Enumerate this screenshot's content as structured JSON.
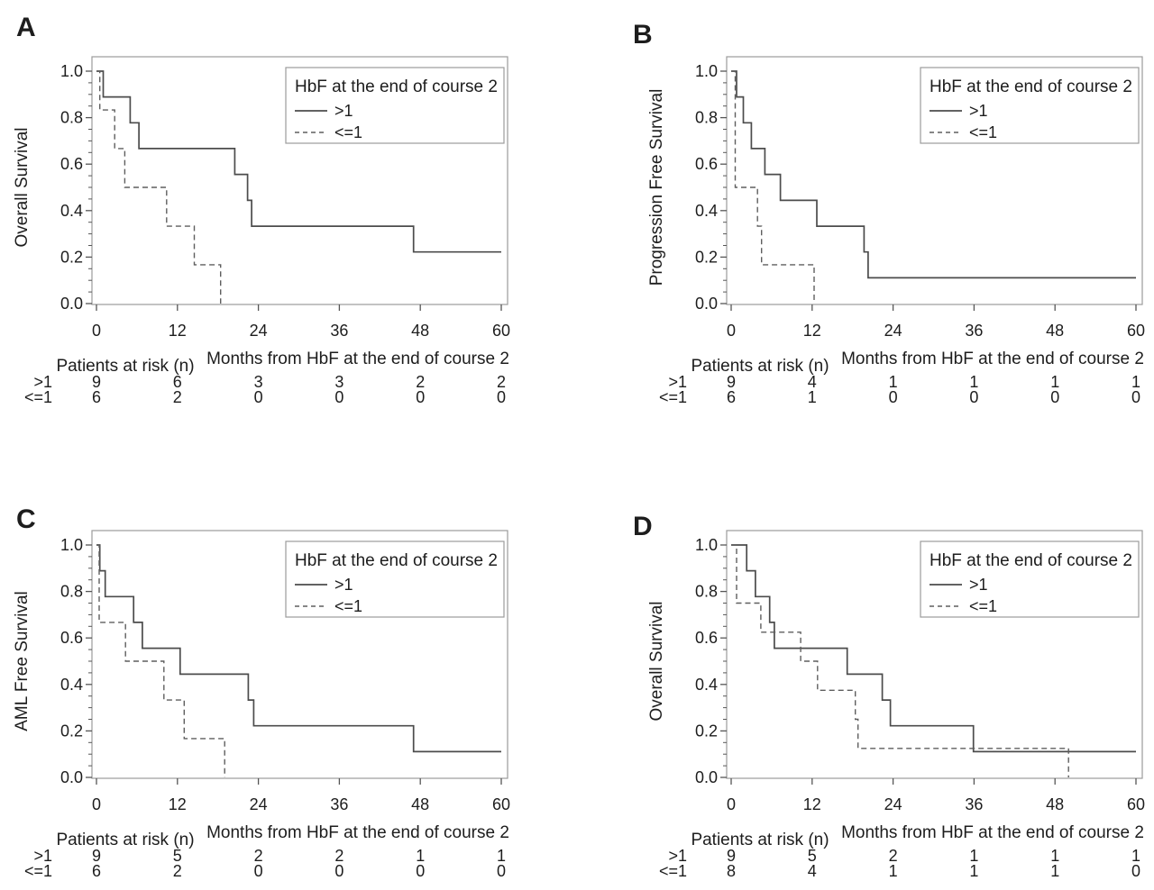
{
  "figure": {
    "background": "#ffffff",
    "panel_letter_color": "#15688e",
    "curve_color_solid": "#4c4c4c",
    "curve_color_dashed": "#5e5e5e",
    "axis_border_color": "#9b9b9b",
    "tick_color": "#565656"
  },
  "chart_data": [
    {
      "type": "line",
      "variant": "kaplan_meier_step",
      "panel_label": "A",
      "ylabel": "Overall Survival",
      "xlabel": "Months from HbF at the end of course 2",
      "xlim": [
        0,
        60
      ],
      "ylim": [
        0.0,
        1.0
      ],
      "grid": false,
      "xticks": [
        0,
        12,
        24,
        36,
        48,
        60
      ],
      "xtick_labels": [
        "0",
        "12",
        "24",
        "36",
        "48",
        "60"
      ],
      "ytick_labels": [
        "0.0",
        "0.2",
        "0.4",
        "0.6",
        "0.8",
        "1.0"
      ],
      "legend": {
        "title": "HbF at the end of course 2",
        "position": "top-right",
        "entries": [
          {
            "label": ">1",
            "line_style": "solid"
          },
          {
            "label": "<=1",
            "line_style": "dashed"
          }
        ]
      },
      "series": [
        {
          "name": ">1",
          "line_style": "solid",
          "points": [
            [
              0,
              1
            ],
            [
              1,
              1
            ],
            [
              1,
              0.889
            ],
            [
              5,
              0.889
            ],
            [
              5,
              0.778
            ],
            [
              6.3,
              0.778
            ],
            [
              6.3,
              0.667
            ],
            [
              20.5,
              0.667
            ],
            [
              20.5,
              0.556
            ],
            [
              22.4,
              0.556
            ],
            [
              22.4,
              0.444
            ],
            [
              23,
              0.444
            ],
            [
              23,
              0.333
            ],
            [
              47,
              0.333
            ],
            [
              47,
              0.222
            ],
            [
              60,
              0.222
            ]
          ]
        },
        {
          "name": "<=1",
          "line_style": "dashed",
          "points": [
            [
              0,
              1
            ],
            [
              0.5,
              1
            ],
            [
              0.5,
              0.833
            ],
            [
              2.7,
              0.833
            ],
            [
              2.7,
              0.667
            ],
            [
              4.2,
              0.667
            ],
            [
              4.2,
              0.5
            ],
            [
              10.4,
              0.5
            ],
            [
              10.4,
              0.333
            ],
            [
              14.5,
              0.333
            ],
            [
              14.5,
              0.167
            ],
            [
              18.4,
              0.167
            ],
            [
              18.4,
              0
            ]
          ]
        }
      ],
      "risk_table": {
        "title": "Patients at risk (n)",
        "times": [
          0,
          12,
          24,
          36,
          48,
          60
        ],
        "rows": [
          {
            "label": ">1",
            "counts": [
              "9",
              "6",
              "3",
              "3",
              "2",
              "2"
            ]
          },
          {
            "label": "<=1",
            "counts": [
              "6",
              "2",
              "0",
              "0",
              "0",
              "0"
            ]
          }
        ]
      }
    },
    {
      "type": "line",
      "variant": "kaplan_meier_step",
      "panel_label": "B",
      "ylabel": "Progression Free Survival",
      "xlabel": "Months from HbF at the end of course 2",
      "xlim": [
        0,
        60
      ],
      "ylim": [
        0.0,
        1.0
      ],
      "grid": false,
      "xticks": [
        0,
        12,
        24,
        36,
        48,
        60
      ],
      "xtick_labels": [
        "0",
        "12",
        "24",
        "36",
        "48",
        "60"
      ],
      "ytick_labels": [
        "0.0",
        "0.2",
        "0.4",
        "0.6",
        "0.8",
        "1.0"
      ],
      "legend": {
        "title": "HbF at the end of course 2",
        "position": "top-right",
        "entries": [
          {
            "label": ">1",
            "line_style": "solid"
          },
          {
            "label": "<=1",
            "line_style": "dashed"
          }
        ]
      },
      "series": [
        {
          "name": ">1",
          "line_style": "solid",
          "points": [
            [
              0,
              1
            ],
            [
              0.8,
              1
            ],
            [
              0.8,
              0.889
            ],
            [
              1.8,
              0.889
            ],
            [
              1.8,
              0.778
            ],
            [
              3,
              0.778
            ],
            [
              3,
              0.667
            ],
            [
              5,
              0.667
            ],
            [
              5,
              0.556
            ],
            [
              7.3,
              0.556
            ],
            [
              7.3,
              0.444
            ],
            [
              12.7,
              0.444
            ],
            [
              12.7,
              0.333
            ],
            [
              19.7,
              0.333
            ],
            [
              19.7,
              0.222
            ],
            [
              20.3,
              0.222
            ],
            [
              20.3,
              0.111
            ],
            [
              60,
              0.111
            ]
          ]
        },
        {
          "name": "<=1",
          "line_style": "dashed",
          "points": [
            [
              0,
              1
            ],
            [
              0.6,
              1
            ],
            [
              0.6,
              0.5
            ],
            [
              3.9,
              0.5
            ],
            [
              3.9,
              0.333
            ],
            [
              4.5,
              0.333
            ],
            [
              4.5,
              0.167
            ],
            [
              12.3,
              0.167
            ],
            [
              12.3,
              0
            ]
          ]
        }
      ],
      "risk_table": {
        "title": "Patients at risk (n)",
        "times": [
          0,
          12,
          24,
          36,
          48,
          60
        ],
        "rows": [
          {
            "label": ">1",
            "counts": [
              "9",
              "4",
              "1",
              "1",
              "1",
              "1"
            ]
          },
          {
            "label": "<=1",
            "counts": [
              "6",
              "1",
              "0",
              "0",
              "0",
              "0"
            ]
          }
        ]
      }
    },
    {
      "type": "line",
      "variant": "kaplan_meier_step",
      "panel_label": "C",
      "ylabel": "AML Free Survival",
      "xlabel": "Months from HbF at the end of course 2",
      "xlim": [
        0,
        60
      ],
      "ylim": [
        0.0,
        1.0
      ],
      "grid": false,
      "xticks": [
        0,
        12,
        24,
        36,
        48,
        60
      ],
      "xtick_labels": [
        "0",
        "12",
        "24",
        "36",
        "48",
        "60"
      ],
      "ytick_labels": [
        "0.0",
        "0.2",
        "0.4",
        "0.6",
        "0.8",
        "1.0"
      ],
      "legend": {
        "title": "HbF at the end of course 2",
        "position": "top-right",
        "entries": [
          {
            "label": ">1",
            "line_style": "solid"
          },
          {
            "label": "<=1",
            "line_style": "dashed"
          }
        ]
      },
      "series": [
        {
          "name": ">1",
          "line_style": "solid",
          "points": [
            [
              0,
              1
            ],
            [
              0.5,
              1
            ],
            [
              0.5,
              0.889
            ],
            [
              1.3,
              0.889
            ],
            [
              1.3,
              0.778
            ],
            [
              5.5,
              0.778
            ],
            [
              5.5,
              0.667
            ],
            [
              6.8,
              0.667
            ],
            [
              6.8,
              0.556
            ],
            [
              12.4,
              0.556
            ],
            [
              12.4,
              0.444
            ],
            [
              22.5,
              0.444
            ],
            [
              22.5,
              0.333
            ],
            [
              23.3,
              0.333
            ],
            [
              23.3,
              0.222
            ],
            [
              47,
              0.222
            ],
            [
              47,
              0.111
            ],
            [
              60,
              0.111
            ]
          ]
        },
        {
          "name": "<=1",
          "line_style": "dashed",
          "points": [
            [
              0,
              1
            ],
            [
              0.4,
              1
            ],
            [
              0.4,
              0.667
            ],
            [
              4.3,
              0.667
            ],
            [
              4.3,
              0.5
            ],
            [
              10,
              0.5
            ],
            [
              10,
              0.333
            ],
            [
              13,
              0.333
            ],
            [
              13,
              0.167
            ],
            [
              19,
              0.167
            ],
            [
              19,
              0
            ]
          ]
        }
      ],
      "risk_table": {
        "title": "Patients at risk (n)",
        "times": [
          0,
          12,
          24,
          36,
          48,
          60
        ],
        "rows": [
          {
            "label": ">1",
            "counts": [
              "9",
              "5",
              "2",
              "2",
              "1",
              "1"
            ]
          },
          {
            "label": "<=1",
            "counts": [
              "6",
              "2",
              "0",
              "0",
              "0",
              "0"
            ]
          }
        ]
      }
    },
    {
      "type": "line",
      "variant": "kaplan_meier_step",
      "panel_label": "D",
      "ylabel": "Overall Survival",
      "xlabel": "Months from HbF at the end of course 2",
      "xlim": [
        0,
        60
      ],
      "ylim": [
        0.0,
        1.0
      ],
      "grid": false,
      "xticks": [
        0,
        12,
        24,
        36,
        48,
        60
      ],
      "xtick_labels": [
        "0",
        "12",
        "24",
        "36",
        "48",
        "60"
      ],
      "ytick_labels": [
        "0.0",
        "0.2",
        "0.4",
        "0.6",
        "0.8",
        "1.0"
      ],
      "legend": {
        "title": "HbF at the end of course 2",
        "position": "top-right",
        "entries": [
          {
            "label": ">1",
            "line_style": "solid"
          },
          {
            "label": "<=1",
            "line_style": "dashed"
          }
        ]
      },
      "series": [
        {
          "name": ">1",
          "line_style": "solid",
          "points": [
            [
              0,
              1
            ],
            [
              2.3,
              1
            ],
            [
              2.3,
              0.889
            ],
            [
              3.6,
              0.889
            ],
            [
              3.6,
              0.778
            ],
            [
              5.7,
              0.778
            ],
            [
              5.7,
              0.667
            ],
            [
              6.4,
              0.667
            ],
            [
              6.4,
              0.556
            ],
            [
              17.2,
              0.556
            ],
            [
              17.2,
              0.444
            ],
            [
              22.4,
              0.444
            ],
            [
              22.4,
              0.333
            ],
            [
              23.6,
              0.333
            ],
            [
              23.6,
              0.222
            ],
            [
              35.9,
              0.222
            ],
            [
              35.9,
              0.111
            ],
            [
              60,
              0.111
            ]
          ]
        },
        {
          "name": "<=1",
          "line_style": "dashed",
          "points": [
            [
              0,
              1
            ],
            [
              0.8,
              1
            ],
            [
              0.8,
              0.75
            ],
            [
              4.4,
              0.75
            ],
            [
              4.4,
              0.625
            ],
            [
              10.3,
              0.625
            ],
            [
              10.3,
              0.5
            ],
            [
              12.8,
              0.5
            ],
            [
              12.8,
              0.375
            ],
            [
              18.4,
              0.375
            ],
            [
              18.4,
              0.25
            ],
            [
              18.8,
              0.25
            ],
            [
              18.8,
              0.125
            ],
            [
              50,
              0.125
            ],
            [
              50,
              0
            ]
          ]
        }
      ],
      "risk_table": {
        "title": "Patients at risk (n)",
        "times": [
          0,
          12,
          24,
          36,
          48,
          60
        ],
        "rows": [
          {
            "label": ">1",
            "counts": [
              "9",
              "5",
              "2",
              "1",
              "1",
              "1"
            ]
          },
          {
            "label": "<=1",
            "counts": [
              "8",
              "4",
              "1",
              "1",
              "1",
              "0"
            ]
          }
        ]
      }
    }
  ]
}
